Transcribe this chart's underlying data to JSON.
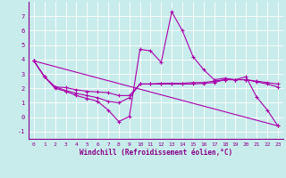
{
  "xlabel": "Windchill (Refroidissement éolien,°C)",
  "bg_color": "#c8ecec",
  "line_color": "#aa00aa",
  "grid_color": "#ffffff",
  "xlim": [
    -0.5,
    23.5
  ],
  "ylim": [
    -1.5,
    8.0
  ],
  "yticks": [
    -1,
    0,
    1,
    2,
    3,
    4,
    5,
    6,
    7
  ],
  "xticks": [
    0,
    1,
    2,
    3,
    4,
    5,
    6,
    7,
    8,
    9,
    10,
    11,
    12,
    13,
    14,
    15,
    16,
    17,
    18,
    19,
    20,
    21,
    22,
    23
  ],
  "lines": [
    {
      "x": [
        0,
        1,
        2,
        3,
        4,
        5,
        6,
        7,
        8,
        9,
        10,
        11,
        12,
        13,
        14,
        15,
        16,
        17,
        18,
        19,
        20,
        21,
        22,
        23
      ],
      "y": [
        3.9,
        2.8,
        2.0,
        1.8,
        1.5,
        1.3,
        1.1,
        0.5,
        -0.3,
        0.05,
        4.7,
        4.6,
        3.8,
        7.3,
        6.0,
        4.2,
        3.3,
        2.6,
        2.7,
        2.6,
        2.8,
        1.4,
        0.5,
        -0.6
      ]
    },
    {
      "x": [
        0,
        1,
        2,
        3,
        4,
        5,
        6,
        7,
        8,
        9,
        10,
        11,
        12,
        13,
        14,
        15,
        16,
        17,
        18,
        19,
        20,
        21,
        22,
        23
      ],
      "y": [
        3.9,
        2.8,
        2.1,
        2.05,
        1.9,
        1.8,
        1.75,
        1.7,
        1.5,
        1.5,
        2.3,
        2.3,
        2.35,
        2.35,
        2.35,
        2.4,
        2.4,
        2.5,
        2.6,
        2.6,
        2.6,
        2.5,
        2.4,
        2.3
      ]
    },
    {
      "x": [
        0,
        23
      ],
      "y": [
        3.9,
        -0.6
      ]
    },
    {
      "x": [
        0,
        1,
        2,
        3,
        4,
        5,
        6,
        7,
        8,
        9,
        10,
        11,
        12,
        13,
        14,
        15,
        16,
        17,
        18,
        19,
        20,
        21,
        22,
        23
      ],
      "y": [
        3.9,
        2.8,
        2.1,
        1.85,
        1.65,
        1.5,
        1.35,
        1.1,
        1.0,
        1.35,
        2.3,
        2.3,
        2.3,
        2.3,
        2.3,
        2.3,
        2.35,
        2.4,
        2.6,
        2.6,
        2.6,
        2.45,
        2.3,
        2.1
      ]
    }
  ]
}
